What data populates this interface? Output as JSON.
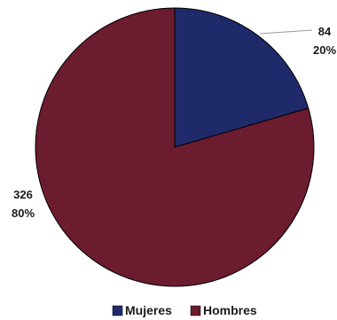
{
  "chart_data": {
    "type": "pie",
    "title": "",
    "categories": [
      "Mujeres",
      "Hombres"
    ],
    "values": [
      84,
      326
    ],
    "percent_labels": [
      "20%",
      "80%"
    ],
    "value_labels": [
      "84",
      "326"
    ],
    "colors": [
      "#1F2A6B",
      "#6B1C2E"
    ],
    "start_angle_deg": 0,
    "direction": "clockwise",
    "legend": {
      "placement": "bottom",
      "entries": [
        "Mujeres",
        "Hombres"
      ]
    }
  }
}
